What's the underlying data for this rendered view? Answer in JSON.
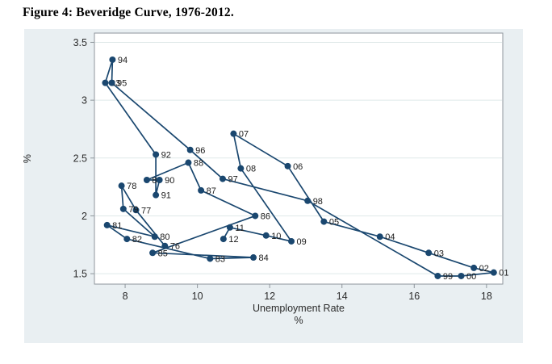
{
  "page": {
    "title": "Figure 4: Beveridge Curve, 1976-2012."
  },
  "colors": {
    "figure_bg": "#e9eff2",
    "plot_bg": "#ffffff",
    "line": "#1a476f",
    "marker": "#1a476f",
    "grid": "#dfe9e9",
    "axis": "#8f969c",
    "tick_text": "#2b2b2b",
    "year_label": "#1a1a1a"
  },
  "chart_data": {
    "type": "line",
    "title": "Figure 4: Beveridge Curve, 1976-2012.",
    "xlabel": "Unemployment Rate",
    "xlabel_unit": "%",
    "ylabel": "%",
    "legend": "none",
    "grid": "horizontal-only",
    "xlim": [
      7.15,
      18.45
    ],
    "ylim": [
      1.41,
      3.58
    ],
    "x_ticks": [
      8,
      10,
      12,
      14,
      16,
      18
    ],
    "x_tick_labels": [
      "8",
      "10",
      "12",
      "14",
      "16",
      "18"
    ],
    "y_ticks": [
      1.5,
      2,
      2.5,
      3,
      3.5
    ],
    "y_tick_labels": [
      "1.5",
      "2",
      "2.5",
      "3",
      "3.5"
    ],
    "series": [
      {
        "name": "beveridge-curve-path",
        "connect": "chronological",
        "points": [
          {
            "year": "76",
            "x": 9.1,
            "y": 1.74
          },
          {
            "year": "77",
            "x": 8.3,
            "y": 2.05
          },
          {
            "year": "78",
            "x": 7.9,
            "y": 2.26
          },
          {
            "year": "79",
            "x": 7.95,
            "y": 2.06
          },
          {
            "year": "80",
            "x": 8.82,
            "y": 1.82
          },
          {
            "year": "81",
            "x": 7.5,
            "y": 1.92
          },
          {
            "year": "82",
            "x": 8.05,
            "y": 1.8
          },
          {
            "year": "83",
            "x": 10.35,
            "y": 1.63
          },
          {
            "year": "84",
            "x": 11.55,
            "y": 1.64
          },
          {
            "year": "85",
            "x": 8.76,
            "y": 1.68
          },
          {
            "year": "86",
            "x": 11.6,
            "y": 2.0
          },
          {
            "year": "87",
            "x": 10.1,
            "y": 2.22
          },
          {
            "year": "88",
            "x": 9.75,
            "y": 2.46
          },
          {
            "year": "89",
            "x": 8.6,
            "y": 2.31
          },
          {
            "year": "90",
            "x": 8.95,
            "y": 2.31
          },
          {
            "year": "91",
            "x": 8.85,
            "y": 2.18
          },
          {
            "year": "92",
            "x": 8.85,
            "y": 2.53
          },
          {
            "year": "93",
            "x": 7.45,
            "y": 3.15
          },
          {
            "year": "94",
            "x": 7.65,
            "y": 3.35
          },
          {
            "year": "95",
            "x": 7.63,
            "y": 3.15
          },
          {
            "year": "96",
            "x": 9.8,
            "y": 2.57
          },
          {
            "year": "97",
            "x": 10.7,
            "y": 2.32
          },
          {
            "year": "98",
            "x": 13.05,
            "y": 2.13
          },
          {
            "year": "99",
            "x": 16.65,
            "y": 1.48
          },
          {
            "year": "00",
            "x": 17.3,
            "y": 1.48
          },
          {
            "year": "01",
            "x": 18.2,
            "y": 1.51
          },
          {
            "year": "02",
            "x": 17.65,
            "y": 1.55
          },
          {
            "year": "03",
            "x": 16.4,
            "y": 1.68
          },
          {
            "year": "04",
            "x": 15.05,
            "y": 1.82
          },
          {
            "year": "05",
            "x": 13.5,
            "y": 1.95
          },
          {
            "year": "06",
            "x": 12.5,
            "y": 2.43
          },
          {
            "year": "07",
            "x": 11.0,
            "y": 2.71
          },
          {
            "year": "08",
            "x": 11.2,
            "y": 2.41
          },
          {
            "year": "09",
            "x": 12.6,
            "y": 1.78
          },
          {
            "year": "10",
            "x": 11.9,
            "y": 1.83
          },
          {
            "year": "11",
            "x": 10.9,
            "y": 1.9
          },
          {
            "year": "12",
            "x": 10.72,
            "y": 1.8
          }
        ]
      }
    ]
  }
}
